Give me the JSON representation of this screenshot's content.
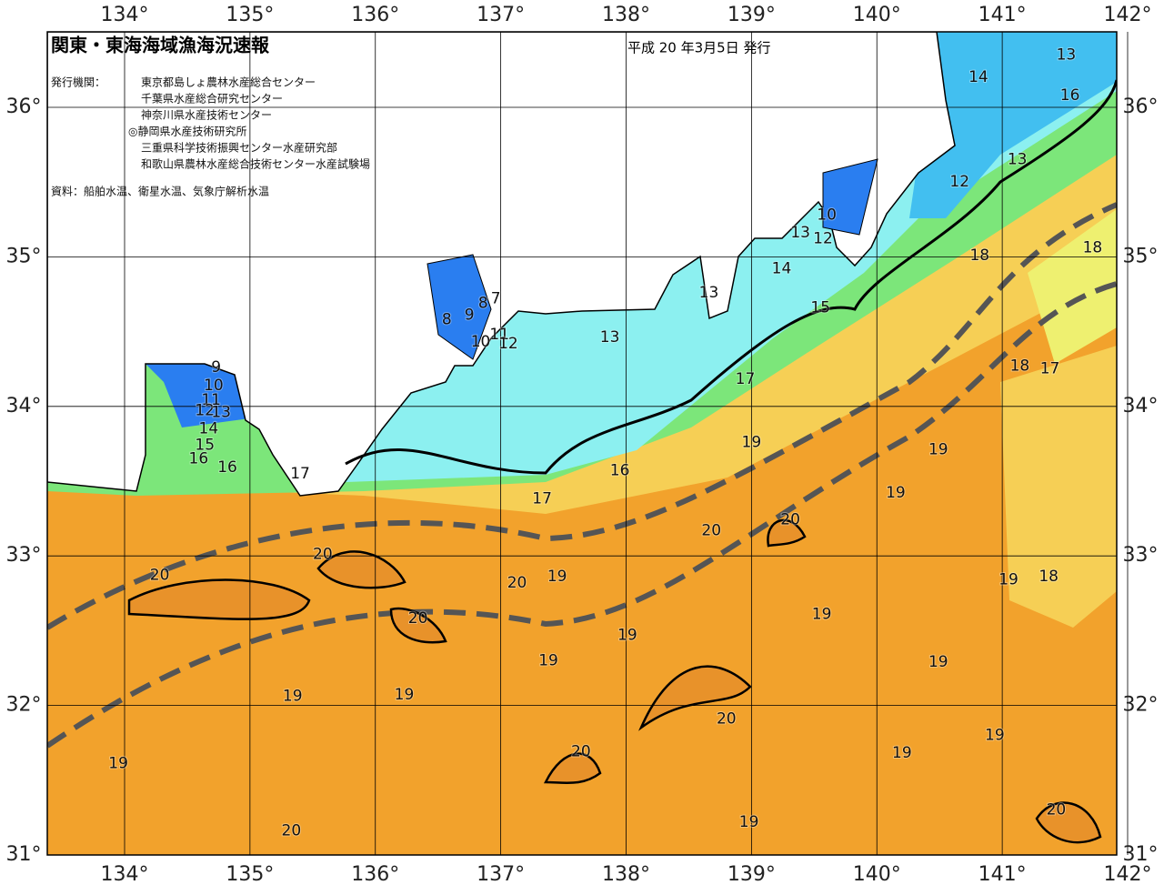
{
  "header": {
    "title": "関東・東海海域漁海況速報",
    "date": "平成 20 年3月5日 発行",
    "issuer_label": "発行機関：",
    "issuers": [
      "東京都島しょ農林水産総合センター",
      "千葉県水産総合研究センター",
      "神奈川県水産技術センター",
      "◎静岡県水産技術研究所",
      "三重県科学技術振興センター水産研究部",
      "和歌山県農林水産総合技術センター水産試験場"
    ],
    "source": "資料：船舶水温、衛星水温、気象庁解析水温"
  },
  "map": {
    "lon_ticks": [
      {
        "value": 134,
        "label": "134°"
      },
      {
        "value": 135,
        "label": "135°"
      },
      {
        "value": 136,
        "label": "136°"
      },
      {
        "value": 137,
        "label": "137°"
      },
      {
        "value": 138,
        "label": "138°"
      },
      {
        "value": 139,
        "label": "139°"
      },
      {
        "value": 140,
        "label": "140°"
      },
      {
        "value": 141,
        "label": "141°"
      },
      {
        "value": 142,
        "label": "142°"
      }
    ],
    "lat_ticks": [
      {
        "value": 31,
        "label": "31°"
      },
      {
        "value": 32,
        "label": "32°"
      },
      {
        "value": 33,
        "label": "33°"
      },
      {
        "value": 34,
        "label": "34°"
      },
      {
        "value": 35,
        "label": "35°"
      },
      {
        "value": 36,
        "label": "36°"
      }
    ],
    "temperature_labels": [
      {
        "value": 14,
        "lon": 140.81,
        "lat": 36.2
      },
      {
        "value": 13,
        "lon": 141.51,
        "lat": 36.35
      },
      {
        "value": 16,
        "lon": 141.54,
        "lat": 36.08
      },
      {
        "value": 13,
        "lon": 141.12,
        "lat": 35.65
      },
      {
        "value": 12,
        "lon": 140.66,
        "lat": 35.5
      },
      {
        "value": 10,
        "lon": 139.6,
        "lat": 35.28
      },
      {
        "value": 13,
        "lon": 139.39,
        "lat": 35.16
      },
      {
        "value": 12,
        "lon": 139.57,
        "lat": 35.12
      },
      {
        "value": 14,
        "lon": 139.24,
        "lat": 34.92
      },
      {
        "value": 18,
        "lon": 140.82,
        "lat": 35.01
      },
      {
        "value": 18,
        "lon": 141.72,
        "lat": 35.06
      },
      {
        "value": 15,
        "lon": 139.55,
        "lat": 34.66
      },
      {
        "value": 13,
        "lon": 138.66,
        "lat": 34.76
      },
      {
        "value": 13,
        "lon": 137.87,
        "lat": 34.46
      },
      {
        "value": 8,
        "lon": 136.57,
        "lat": 34.58
      },
      {
        "value": 9,
        "lon": 136.75,
        "lat": 34.61
      },
      {
        "value": 8,
        "lon": 136.86,
        "lat": 34.69
      },
      {
        "value": 7,
        "lon": 136.96,
        "lat": 34.72
      },
      {
        "value": 10,
        "lon": 136.84,
        "lat": 34.43
      },
      {
        "value": 11,
        "lon": 136.99,
        "lat": 34.48
      },
      {
        "value": 12,
        "lon": 137.06,
        "lat": 34.42
      },
      {
        "value": 9,
        "lon": 134.73,
        "lat": 34.26
      },
      {
        "value": 10,
        "lon": 134.71,
        "lat": 34.14
      },
      {
        "value": 11,
        "lon": 134.69,
        "lat": 34.04
      },
      {
        "value": 12,
        "lon": 134.64,
        "lat": 33.97
      },
      {
        "value": 13,
        "lon": 134.77,
        "lat": 33.96
      },
      {
        "value": 14,
        "lon": 134.67,
        "lat": 33.85
      },
      {
        "value": 15,
        "lon": 134.64,
        "lat": 33.74
      },
      {
        "value": 16,
        "lon": 134.59,
        "lat": 33.65
      },
      {
        "value": 16,
        "lon": 134.82,
        "lat": 33.59
      },
      {
        "value": 17,
        "lon": 135.4,
        "lat": 33.55
      },
      {
        "value": 17,
        "lon": 138.95,
        "lat": 34.18
      },
      {
        "value": 18,
        "lon": 141.14,
        "lat": 34.27
      },
      {
        "value": 17,
        "lon": 141.38,
        "lat": 34.25
      },
      {
        "value": 19,
        "lon": 139.0,
        "lat": 33.76
      },
      {
        "value": 16,
        "lon": 137.95,
        "lat": 33.57
      },
      {
        "value": 19,
        "lon": 140.49,
        "lat": 33.71
      },
      {
        "value": 17,
        "lon": 137.33,
        "lat": 33.38
      },
      {
        "value": 19,
        "lon": 140.15,
        "lat": 33.42
      },
      {
        "value": 20,
        "lon": 138.68,
        "lat": 33.17
      },
      {
        "value": 20,
        "lon": 139.31,
        "lat": 33.24
      },
      {
        "value": 20,
        "lon": 135.58,
        "lat": 33.01
      },
      {
        "value": 20,
        "lon": 134.28,
        "lat": 32.87
      },
      {
        "value": 20,
        "lon": 137.13,
        "lat": 32.82
      },
      {
        "value": 19,
        "lon": 137.45,
        "lat": 32.86
      },
      {
        "value": 19,
        "lon": 141.05,
        "lat": 32.84
      },
      {
        "value": 18,
        "lon": 141.37,
        "lat": 32.86
      },
      {
        "value": 20,
        "lon": 136.34,
        "lat": 32.58
      },
      {
        "value": 19,
        "lon": 138.01,
        "lat": 32.47
      },
      {
        "value": 19,
        "lon": 139.56,
        "lat": 32.61
      },
      {
        "value": 19,
        "lon": 137.38,
        "lat": 32.3
      },
      {
        "value": 19,
        "lon": 140.49,
        "lat": 32.29
      },
      {
        "value": 19,
        "lon": 135.34,
        "lat": 32.06
      },
      {
        "value": 19,
        "lon": 136.23,
        "lat": 32.07
      },
      {
        "value": 20,
        "lon": 138.8,
        "lat": 31.91
      },
      {
        "value": 19,
        "lon": 140.94,
        "lat": 31.8
      },
      {
        "value": 19,
        "lon": 140.2,
        "lat": 31.68
      },
      {
        "value": 20,
        "lon": 137.64,
        "lat": 31.69
      },
      {
        "value": 19,
        "lon": 133.95,
        "lat": 31.61
      },
      {
        "value": 19,
        "lon": 138.98,
        "lat": 31.22
      },
      {
        "value": 20,
        "lon": 141.43,
        "lat": 31.3
      },
      {
        "value": 20,
        "lon": 135.33,
        "lat": 31.16
      }
    ]
  }
}
